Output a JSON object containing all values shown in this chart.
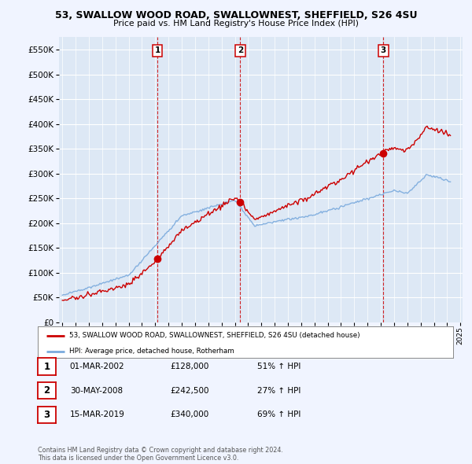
{
  "title": "53, SWALLOW WOOD ROAD, SWALLOWNEST, SHEFFIELD, S26 4SU",
  "subtitle": "Price paid vs. HM Land Registry's House Price Index (HPI)",
  "legend_line1": "53, SWALLOW WOOD ROAD, SWALLOWNEST, SHEFFIELD, S26 4SU (detached house)",
  "legend_line2": "HPI: Average price, detached house, Rotherham",
  "sale_color": "#cc0000",
  "hpi_color": "#7aaadd",
  "vline_color": "#cc0000",
  "background_color": "#f0f4ff",
  "plot_bg": "#dde8f5",
  "sales": [
    {
      "date": "2002-03-01",
      "price": 128000,
      "label": "1"
    },
    {
      "date": "2008-05-30",
      "price": 242500,
      "label": "2"
    },
    {
      "date": "2019-03-15",
      "price": 340000,
      "label": "3"
    }
  ],
  "sale_table": [
    {
      "num": "1",
      "date": "01-MAR-2002",
      "price": "£128,000",
      "hpi": "51% ↑ HPI"
    },
    {
      "num": "2",
      "date": "30-MAY-2008",
      "price": "£242,500",
      "hpi": "27% ↑ HPI"
    },
    {
      "num": "3",
      "date": "15-MAR-2019",
      "price": "£340,000",
      "hpi": "69% ↑ HPI"
    }
  ],
  "footer": "Contains HM Land Registry data © Crown copyright and database right 2024.\nThis data is licensed under the Open Government Licence v3.0.",
  "ylim": [
    0,
    575000
  ],
  "yticks": [
    0,
    50000,
    100000,
    150000,
    200000,
    250000,
    300000,
    350000,
    400000,
    450000,
    500000,
    550000
  ]
}
